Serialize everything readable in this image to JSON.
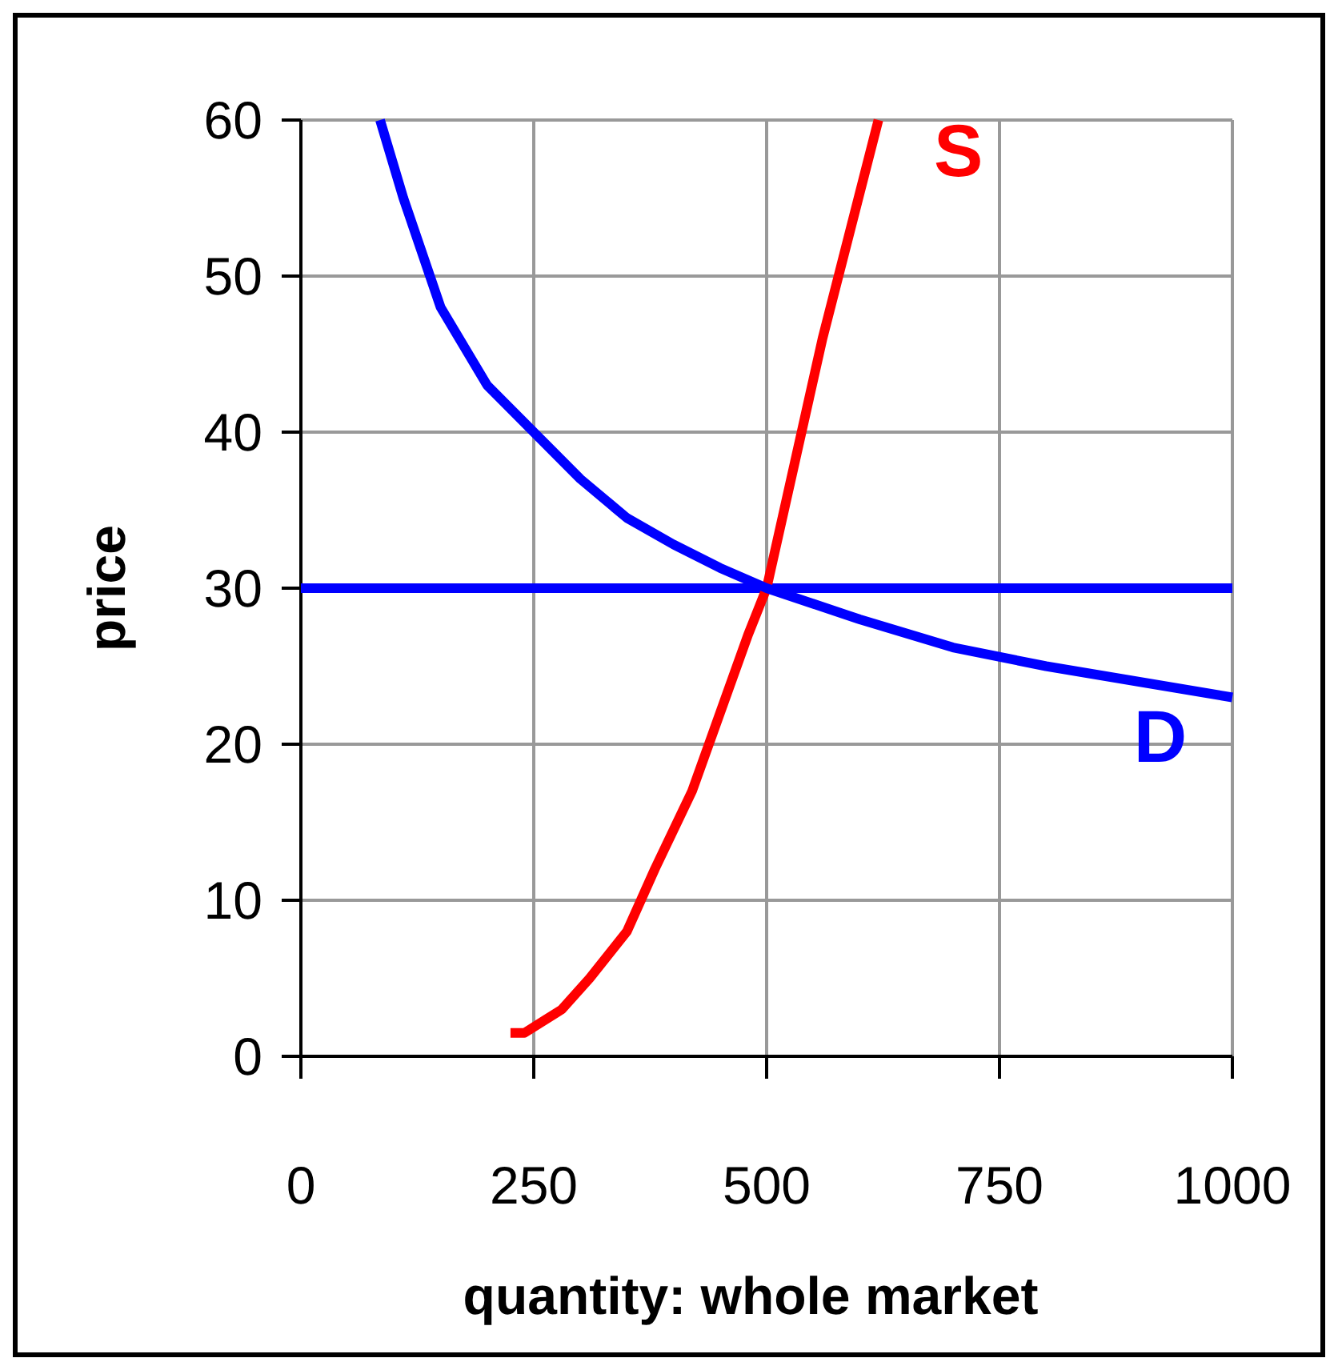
{
  "chart_data": {
    "type": "line",
    "xlabel": "quantity: whole market",
    "ylabel": "price",
    "xlim": [
      0,
      1000
    ],
    "xticks": [
      0,
      250,
      500,
      750,
      1000
    ],
    "ylim": [
      0,
      60
    ],
    "yticks": [
      0,
      10,
      20,
      30,
      40,
      50,
      60
    ],
    "grid": true,
    "marker": "none",
    "line_style": "solid",
    "series": [
      {
        "name": "S",
        "color": "#ff0000",
        "x": [
          225,
          240,
          280,
          310,
          350,
          380,
          420,
          450,
          480,
          500,
          530,
          560,
          590,
          620
        ],
        "values": [
          1.5,
          1.5,
          3,
          5,
          8,
          12,
          17,
          22,
          27,
          30,
          38,
          46,
          53,
          60
        ]
      },
      {
        "name": "D",
        "color": "#0000ff",
        "x": [
          85,
          110,
          150,
          200,
          250,
          300,
          350,
          400,
          450,
          500,
          600,
          700,
          800,
          900,
          1000
        ],
        "values": [
          60,
          55,
          48,
          43,
          40,
          37,
          34.5,
          32.8,
          31.3,
          30,
          28,
          26.2,
          25,
          24,
          23
        ]
      }
    ],
    "ref_lines": [
      {
        "axis": "y",
        "value": 30,
        "color": "#0000ff"
      }
    ]
  }
}
